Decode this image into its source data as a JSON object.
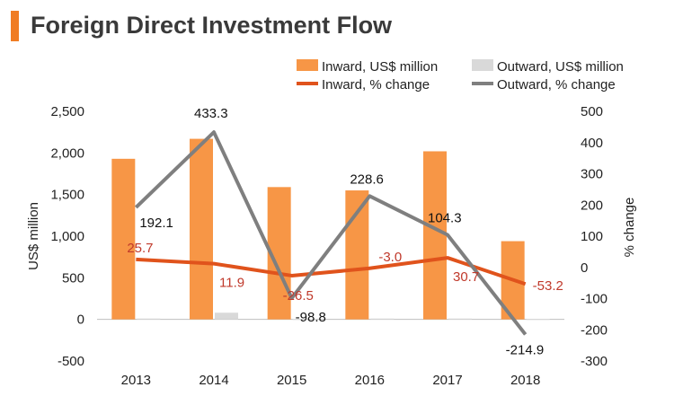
{
  "title": "Foreign Direct Investment Flow",
  "colors": {
    "accent": "#f07c23",
    "inward_bar": "#f79646",
    "outward_bar": "#d9d9d9",
    "inward_line": "#e0531c",
    "outward_line": "#7f7f7f",
    "inward_label": "#c0392b",
    "axis": "#bfbfbf"
  },
  "chart_data": {
    "type": "bar",
    "title": "Foreign Direct Investment Flow",
    "categories": [
      "2013",
      "2014",
      "2015",
      "2016",
      "2017",
      "2018"
    ],
    "ylabel": "US$ million",
    "y2label": "% change",
    "ylim": [
      -500,
      2500
    ],
    "y2lim": [
      -300,
      500
    ],
    "yticks": [
      "2,500",
      "2,000",
      "1,500",
      "1,000",
      "500",
      "0",
      "-500"
    ],
    "yticks_values": [
      2500,
      2000,
      1500,
      1000,
      500,
      0,
      -500
    ],
    "y2ticks": [
      "500",
      "400",
      "300",
      "200",
      "100",
      "0",
      "-100",
      "-200",
      "-300"
    ],
    "y2ticks_values": [
      500,
      400,
      300,
      200,
      100,
      0,
      -100,
      -200,
      -300
    ],
    "legend_position": "top-right",
    "bar_series": [
      {
        "name": "Inward, US$ million",
        "values": [
          1930,
          2170,
          1590,
          1550,
          2020,
          940
        ]
      },
      {
        "name": "Outward, US$ million",
        "values": [
          10,
          80,
          5,
          10,
          10,
          5
        ]
      }
    ],
    "line_series": [
      {
        "name": "Inward, % change",
        "values": [
          25.7,
          11.9,
          -26.5,
          -3.0,
          30.7,
          -53.2
        ],
        "labels": [
          "25.7",
          "11.9",
          "-26.5",
          "-3.0",
          "30.7",
          "-53.2"
        ]
      },
      {
        "name": "Outward, % change",
        "values": [
          192.1,
          433.3,
          -98.8,
          228.6,
          104.3,
          -214.9
        ],
        "labels": [
          "192.1",
          "433.3",
          "-98.8",
          "228.6",
          "104.3",
          "-214.9"
        ]
      }
    ]
  }
}
